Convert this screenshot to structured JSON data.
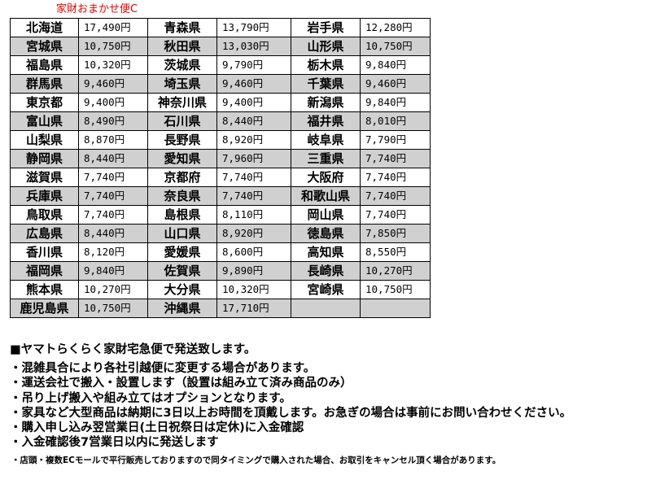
{
  "caption": "家財おまかせ便C",
  "rows": [
    [
      [
        "北海道",
        "17,490円"
      ],
      [
        "青森県",
        "13,790円"
      ],
      [
        "岩手県",
        "12,280円"
      ]
    ],
    [
      [
        "宮城県",
        "10,750円"
      ],
      [
        "秋田県",
        "13,030円"
      ],
      [
        "山形県",
        "10,750円"
      ]
    ],
    [
      [
        "福島県",
        "10,320円"
      ],
      [
        "茨城県",
        "9,790円"
      ],
      [
        "栃木県",
        "9,840円"
      ]
    ],
    [
      [
        "群馬県",
        "9,460円"
      ],
      [
        "埼玉県",
        "9,460円"
      ],
      [
        "千葉県",
        "9,460円"
      ]
    ],
    [
      [
        "東京都",
        "9,400円"
      ],
      [
        "神奈川県",
        "9,400円"
      ],
      [
        "新潟県",
        "9,840円"
      ]
    ],
    [
      [
        "富山県",
        "8,490円"
      ],
      [
        "石川県",
        "8,440円"
      ],
      [
        "福井県",
        "8,010円"
      ]
    ],
    [
      [
        "山梨県",
        "8,870円"
      ],
      [
        "長野県",
        "8,920円"
      ],
      [
        "岐阜県",
        "7,790円"
      ]
    ],
    [
      [
        "静岡県",
        "8,440円"
      ],
      [
        "愛知県",
        "7,960円"
      ],
      [
        "三重県",
        "7,740円"
      ]
    ],
    [
      [
        "滋賀県",
        "7,740円"
      ],
      [
        "京都府",
        "7,740円"
      ],
      [
        "大阪府",
        "7,740円"
      ]
    ],
    [
      [
        "兵庫県",
        "7,740円"
      ],
      [
        "奈良県",
        "7,740円"
      ],
      [
        "和歌山県",
        "7,740円"
      ]
    ],
    [
      [
        "鳥取県",
        "7,740円"
      ],
      [
        "島根県",
        "8,110円"
      ],
      [
        "岡山県",
        "7,740円"
      ]
    ],
    [
      [
        "広島県",
        "8,440円"
      ],
      [
        "山口県",
        "8,920円"
      ],
      [
        "徳島県",
        "7,850円"
      ]
    ],
    [
      [
        "香川県",
        "8,120円"
      ],
      [
        "愛媛県",
        "8,600円"
      ],
      [
        "高知県",
        "8,550円"
      ]
    ],
    [
      [
        "福岡県",
        "9,840円"
      ],
      [
        "佐賀県",
        "9,890円"
      ],
      [
        "長崎県",
        "10,270円"
      ]
    ],
    [
      [
        "熊本県",
        "10,270円"
      ],
      [
        "大分県",
        "10,320円"
      ],
      [
        "宮崎県",
        "10,750円"
      ]
    ],
    [
      [
        "鹿児島県",
        "10,750円"
      ],
      [
        "沖縄県",
        "17,710円"
      ],
      [
        "",
        ""
      ]
    ]
  ],
  "heading": "■ヤマトらくらく家財宅急便で発送致します。",
  "notes": [
    "・混雑具合により各社引越便に変更する場合があります。",
    "・運送会社で搬入・設置します（設置は組み立て済み商品のみ）",
    "・吊り上げ搬入や組み立てはオプションとなります。",
    "・家具など大型商品は納期に3日以上お時間を頂戴します。お急ぎの場合は事前にお問い合わせください。",
    "・購入申し込み翌営業日(土日祝祭日は定休)に入金確認",
    "・入金確認後7営業日以内に発送します"
  ],
  "small_note": "・店頭・複数ECモールで平行販売しておりますので同タイミングで購入された場合、お取引をキャンセル頂く場合があります。"
}
